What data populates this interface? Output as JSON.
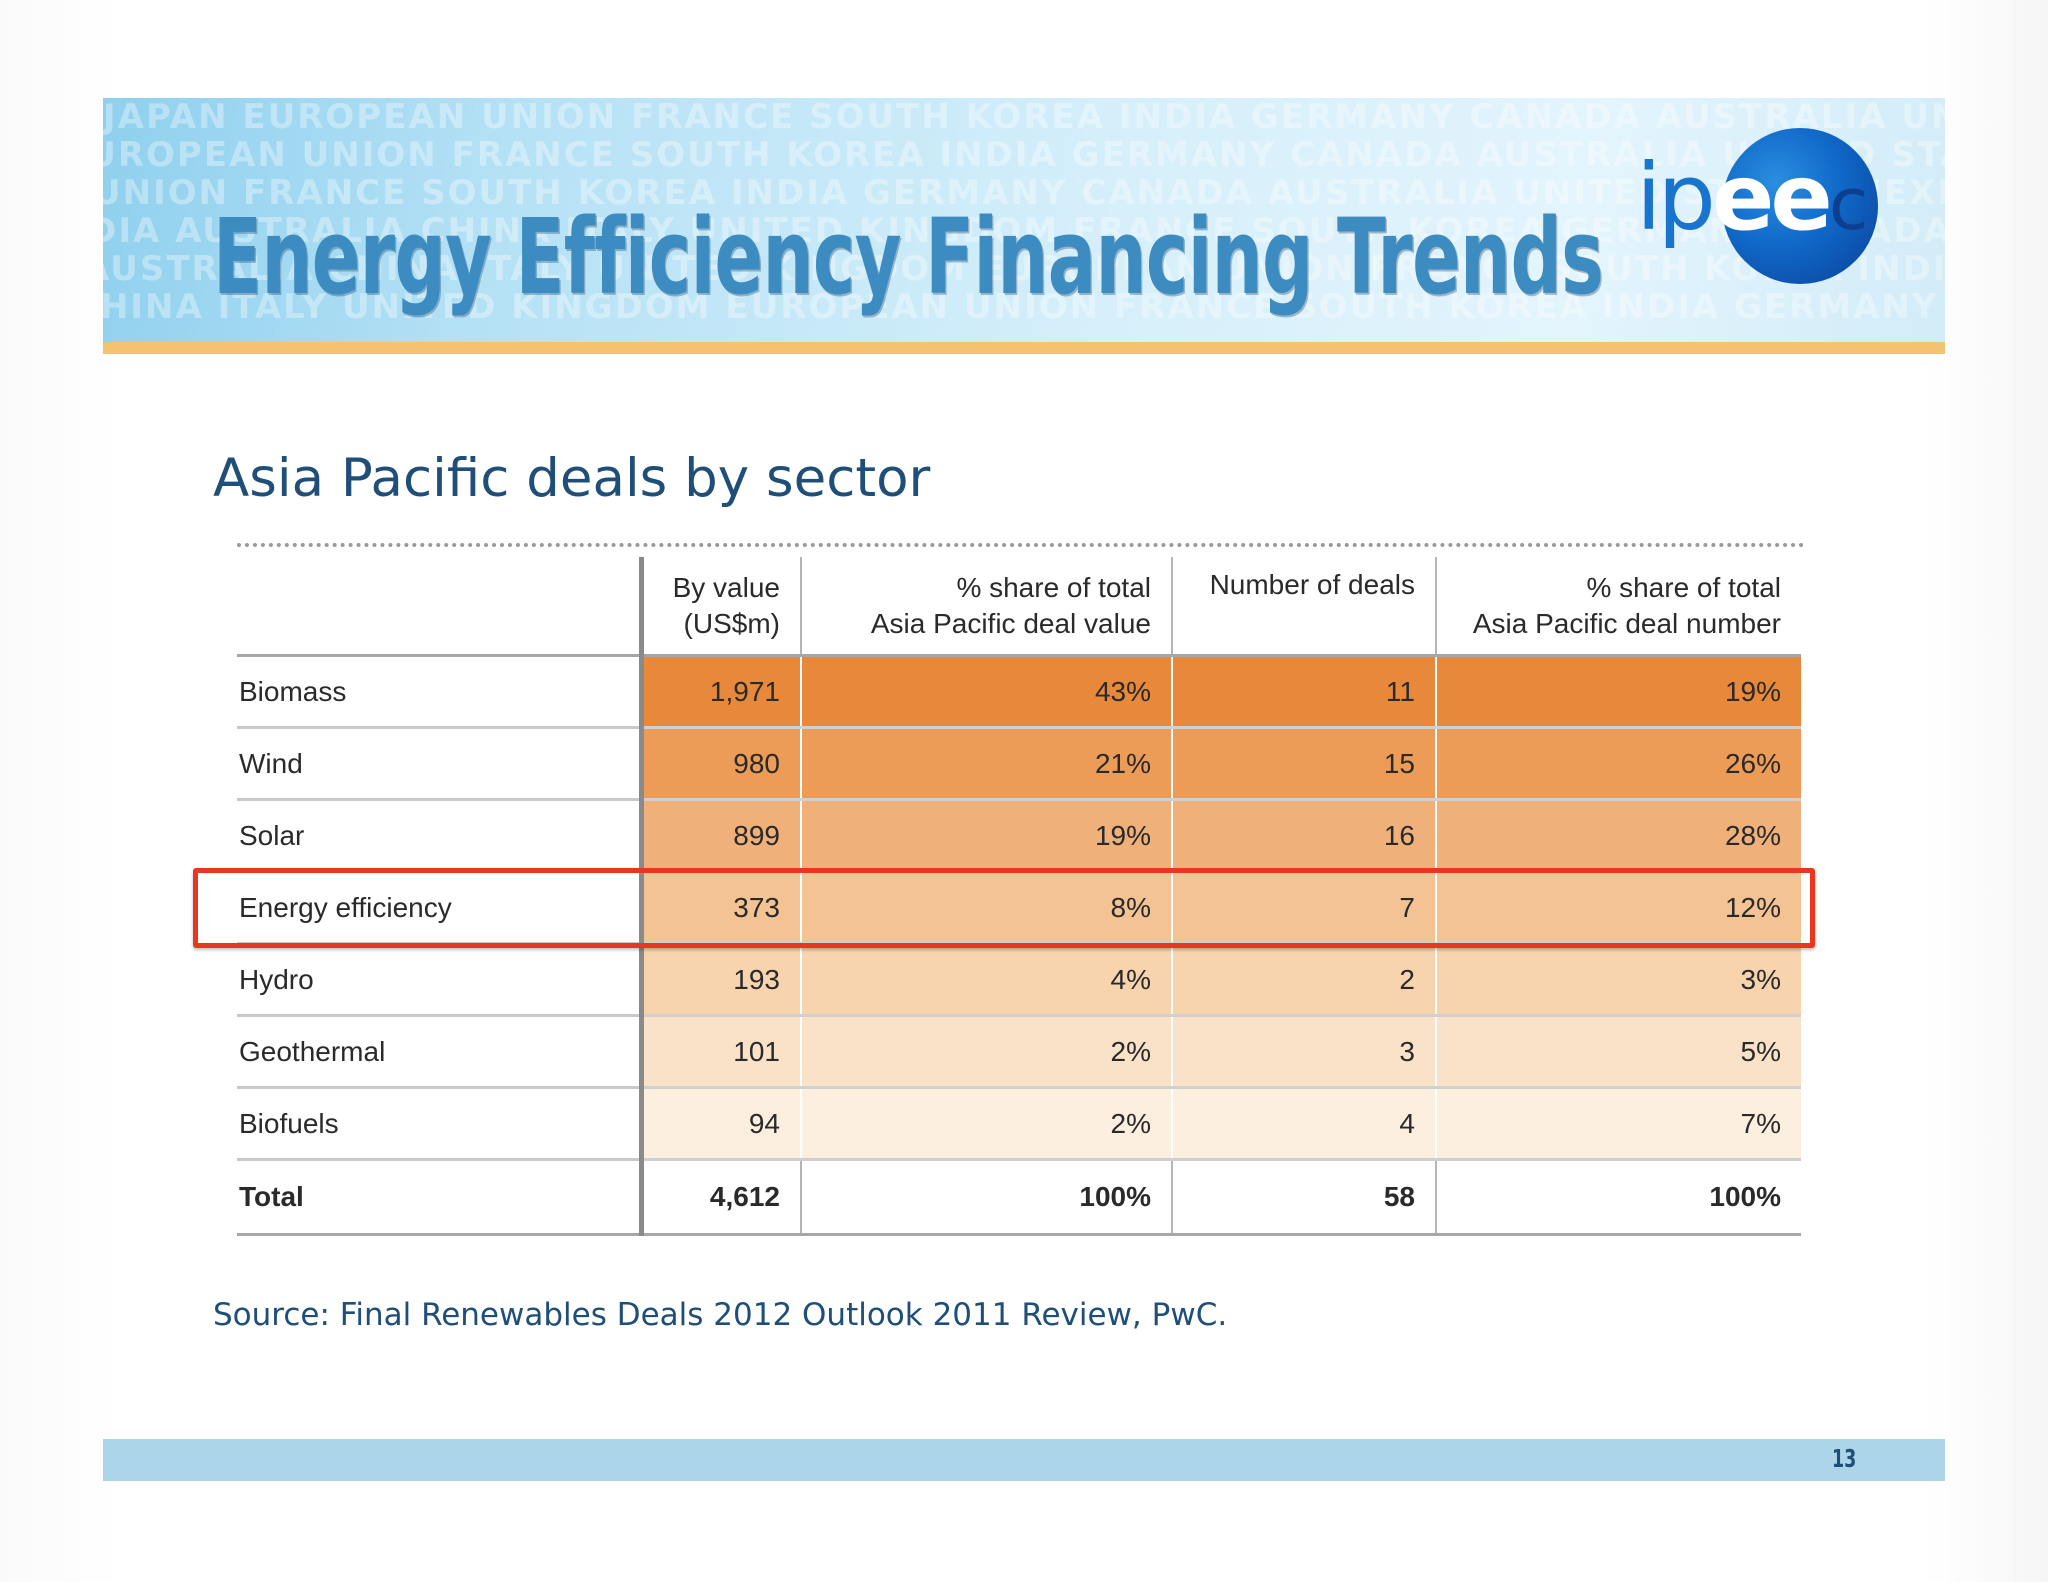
{
  "header": {
    "title": "Energy Efficiency Financing Trends",
    "background_words": [
      "JAPAN EUROPEAN UNION FRANCE SOUTH KOREA INDIA GERMANY CANADA AUSTRALIA UNITED STATES MEXICO",
      "EUROPEAN UNION FRANCE SOUTH KOREA INDIA GERMANY CANADA AUSTRALIA UNITED STATES MEXICO CHINA",
      "UNION FRANCE SOUTH KOREA INDIA GERMANY CANADA AUSTRALIA UNITED STATES MEXICO BRAZIL ITALY",
      "INDIA AUSTRALIA CHINA ITALY UNITED KINGDOM FRANCE SOUTH KOREA GERMANY CANADA JAPAN",
      "AUSTRALIA CHINA ITALY UNITED KINGDOM EUROPEAN UNION FRANCE SOUTH KOREA INDIA GERMANY",
      "CHINA ITALY UNITED KINGDOM EUROPEAN UNION FRANCE SOUTH KOREA INDIA GERMANY CANADA"
    ]
  },
  "logo": {
    "text_ip": "ip",
    "text_ee": "ee",
    "text_c": "c",
    "icon": "ipeec-logo"
  },
  "subtitle": "Asia Pacific deals by sector",
  "table": {
    "headers": [
      {
        "line1": "",
        "line2": ""
      },
      {
        "line1": "By value",
        "line2": "(US$m)"
      },
      {
        "line1": "% share of total",
        "line2": "Asia Pacific deal value"
      },
      {
        "line1": "Number of deals",
        "line2": ""
      },
      {
        "line1": "% share of total",
        "line2": "Asia Pacific deal number"
      }
    ],
    "rows": [
      {
        "sector": "Biomass",
        "value": "1,971",
        "value_share": "43%",
        "deals": "11",
        "deals_share": "19%",
        "shade": "#e8883a"
      },
      {
        "sector": "Wind",
        "value": "980",
        "value_share": "21%",
        "deals": "15",
        "deals_share": "26%",
        "shade": "#ec9c56"
      },
      {
        "sector": "Solar",
        "value": "899",
        "value_share": "19%",
        "deals": "16",
        "deals_share": "28%",
        "shade": "#f0b07a"
      },
      {
        "sector": "Energy efficiency",
        "value": "373",
        "value_share": "8%",
        "deals": "7",
        "deals_share": "12%",
        "shade": "#f4c394"
      },
      {
        "sector": "Hydro",
        "value": "193",
        "value_share": "4%",
        "deals": "2",
        "deals_share": "3%",
        "shade": "#f7d4ae"
      },
      {
        "sector": "Geothermal",
        "value": "101",
        "value_share": "2%",
        "deals": "3",
        "deals_share": "5%",
        "shade": "#fae2c8"
      },
      {
        "sector": "Biofuels",
        "value": "94",
        "value_share": "2%",
        "deals": "4",
        "deals_share": "7%",
        "shade": "#fcefdf"
      }
    ],
    "total": {
      "sector": "Total",
      "value": "4,612",
      "value_share": "100%",
      "deals": "58",
      "deals_share": "100%"
    },
    "highlighted_sector": "Energy efficiency",
    "highlight_color": "#e8371e"
  },
  "source": "Source: Final Renewables Deals 2012 Outlook 2011 Review, PwC.",
  "footer": {
    "page_number": "13"
  },
  "colors": {
    "title": "#3c8cc1",
    "text": "#1f4e79",
    "accent_bar": "#f3c371",
    "footer_bar": "#acd5ea"
  }
}
